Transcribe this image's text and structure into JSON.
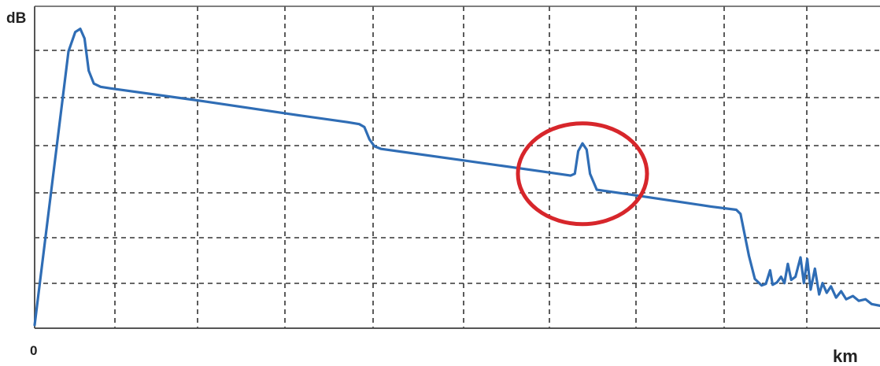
{
  "chart_data": {
    "type": "line",
    "xlabel": "km",
    "ylabel": "dB",
    "x_tick_labels": [
      "0"
    ],
    "xlim": [
      0,
      100
    ],
    "ylim": [
      0,
      100
    ],
    "grid": "dashed",
    "series": [
      {
        "color": "#2f6db5",
        "points": [
          [
            0,
            1
          ],
          [
            4.0,
            86
          ],
          [
            4.8,
            92
          ],
          [
            5.4,
            93
          ],
          [
            5.9,
            90
          ],
          [
            6.4,
            80
          ],
          [
            7.0,
            76
          ],
          [
            7.8,
            75
          ],
          [
            9.0,
            74.5
          ],
          [
            20,
            70.5
          ],
          [
            30,
            66.6
          ],
          [
            37,
            64.0
          ],
          [
            38.4,
            63.4
          ],
          [
            39.0,
            62.5
          ],
          [
            39.6,
            58.7
          ],
          [
            40.2,
            56.5
          ],
          [
            41.0,
            55.7
          ],
          [
            50,
            52.4
          ],
          [
            60,
            48.7
          ],
          [
            63.4,
            47.4
          ],
          [
            63.9,
            48.0
          ],
          [
            64.3,
            55.0
          ],
          [
            64.8,
            57.4
          ],
          [
            65.3,
            55.5
          ],
          [
            65.7,
            48.0
          ],
          [
            66.5,
            43.0
          ],
          [
            70,
            41.7
          ],
          [
            80,
            37.8
          ],
          [
            83.0,
            36.8
          ],
          [
            83.5,
            35.5
          ],
          [
            84.5,
            22.5
          ],
          [
            85.2,
            15.3
          ],
          [
            86.0,
            13.3
          ],
          [
            86.5,
            13.8
          ],
          [
            87.0,
            18.0
          ],
          [
            87.3,
            13.5
          ],
          [
            87.8,
            14.2
          ],
          [
            88.3,
            16.0
          ],
          [
            88.7,
            14.0
          ],
          [
            89.1,
            20.0
          ],
          [
            89.5,
            15.0
          ],
          [
            90.0,
            16.0
          ],
          [
            90.6,
            22.0
          ],
          [
            91.0,
            14.0
          ],
          [
            91.4,
            21.5
          ],
          [
            91.8,
            12.0
          ],
          [
            92.3,
            18.5
          ],
          [
            92.8,
            10.5
          ],
          [
            93.2,
            14.0
          ],
          [
            93.7,
            11.0
          ],
          [
            94.2,
            13.0
          ],
          [
            94.8,
            9.5
          ],
          [
            95.4,
            11.5
          ],
          [
            96.0,
            9.0
          ],
          [
            96.8,
            10.0
          ],
          [
            97.5,
            8.5
          ],
          [
            98.3,
            9.0
          ],
          [
            99.0,
            7.5
          ],
          [
            100,
            7.0
          ]
        ]
      }
    ],
    "annotation": {
      "shape": "ellipse",
      "color": "#d7262b",
      "x": 64.8,
      "y": 48
    }
  }
}
